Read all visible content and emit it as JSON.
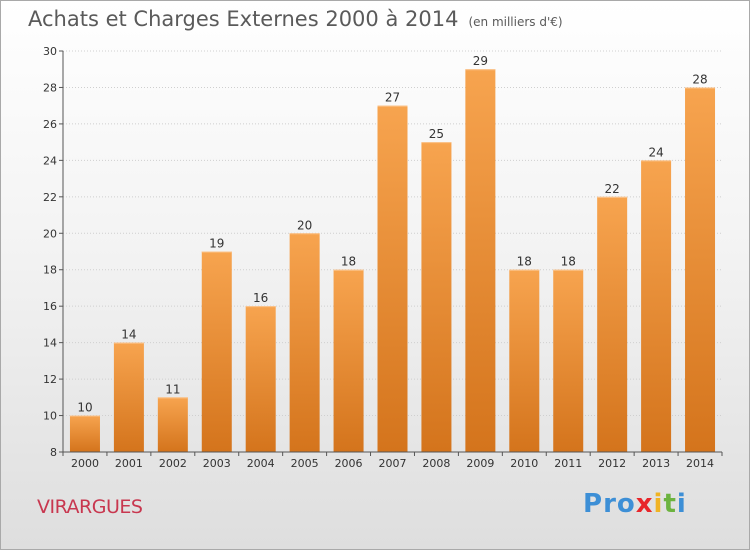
{
  "header": {
    "title": "Achats et Charges Externes 2000 à 2014",
    "unit": "(en milliers d'€)"
  },
  "commune": "VIRARGUES",
  "logo": {
    "letters": [
      "P",
      "r",
      "o",
      "x",
      "i",
      "t",
      "i"
    ]
  },
  "colors": {
    "bar_top": "#f7a44f",
    "bar_bottom": "#d4741c",
    "grid": "#cfcfcf",
    "logo": [
      "#3d8fd6",
      "#3d8fd6",
      "#3d8fd6",
      "#e8262b",
      "#f0b324",
      "#6cb33f",
      "#3d8fd6"
    ]
  },
  "chart_data": {
    "type": "bar",
    "title": "Achats et Charges Externes 2000 à 2014",
    "subtitle": "(en milliers d'€)",
    "categories": [
      "2000",
      "2001",
      "2002",
      "2003",
      "2004",
      "2005",
      "2006",
      "2007",
      "2008",
      "2009",
      "2010",
      "2011",
      "2012",
      "2013",
      "2014"
    ],
    "values": [
      10,
      14,
      11,
      19,
      16,
      20,
      18,
      27,
      25,
      29,
      18,
      18,
      22,
      24,
      28
    ],
    "yticks": [
      8,
      10,
      12,
      14,
      16,
      18,
      20,
      22,
      24,
      26,
      28,
      30
    ],
    "ylim": [
      8,
      30
    ],
    "grid": true,
    "data_labels": true
  }
}
